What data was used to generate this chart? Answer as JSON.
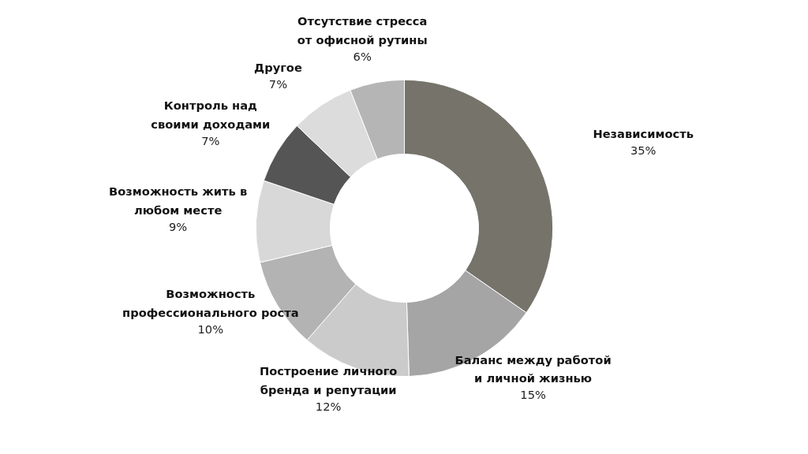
{
  "chart_data": {
    "type": "donut",
    "categories": [
      "Независимость",
      "Баланс между работой\nи личной жизнью",
      "Построение личного\nбренда и репутации",
      "Возможность\nпрофессионального роста",
      "Возможность жить в\nлюбом месте",
      "Контроль над\nсвоими доходами",
      "Другое",
      "Отсутствие стресса\nот офисной рутины"
    ],
    "values": [
      35,
      15,
      12,
      10,
      9,
      7,
      7,
      6
    ],
    "colors": [
      "#76736a",
      "#a5a5a5",
      "#cbcbcb",
      "#b3b3b3",
      "#d8d8d8",
      "#555555",
      "#dcdcdc",
      "#b5b5b5"
    ],
    "value_labels": [
      "35%",
      "15%",
      "12%",
      "10%",
      "9%",
      "7%",
      "7%",
      "6%"
    ]
  }
}
